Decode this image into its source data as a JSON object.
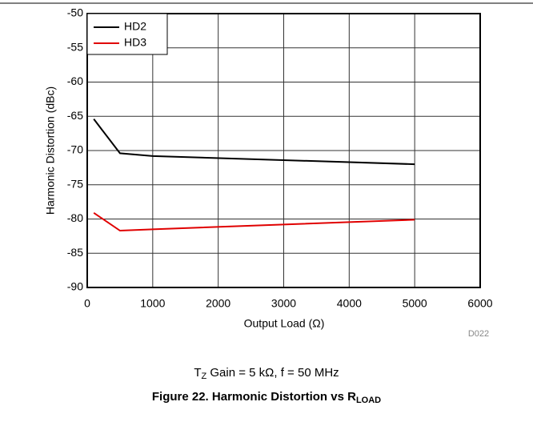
{
  "chart_data": {
    "type": "line",
    "xlabel": "Output Load (Ω)",
    "ylabel": "Harmonic Distortion (dBc)",
    "code": "D022",
    "note": [
      "T",
      "Z",
      " Gain = 5 kΩ, f = 50 MHz"
    ],
    "title": [
      "Figure 22. Harmonic Distortion vs R",
      "LOAD"
    ],
    "x": [
      100,
      500,
      1000,
      5000
    ],
    "series": [
      {
        "name": "HD2",
        "color": "#000000",
        "values": [
          -65.4,
          -70.4,
          -70.8,
          -72.0
        ]
      },
      {
        "name": "HD3",
        "color": "#e00000",
        "values": [
          -79.1,
          -81.7,
          -81.5,
          -80.1
        ]
      }
    ],
    "xlim": [
      0,
      6000
    ],
    "xticks": [
      0,
      1000,
      2000,
      3000,
      4000,
      5000,
      6000
    ],
    "ylim": [
      -90,
      -50
    ],
    "yticks": [
      -90,
      -85,
      -80,
      -75,
      -70,
      -65,
      -60,
      -55,
      -50
    ],
    "grid": true,
    "legend": "upper left"
  }
}
